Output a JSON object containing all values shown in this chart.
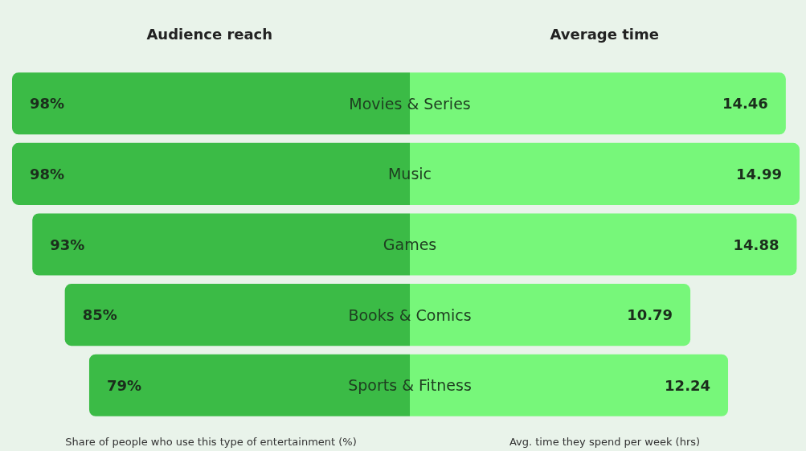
{
  "chart_data": [
    {
      "type": "bar",
      "orientation": "horizontal",
      "title": "Audience reach",
      "xlabel": "Share of people who use this type of entertainment (%)",
      "categories": [
        "Movies & Series",
        "Music",
        "Games",
        "Books & Comics",
        "Sports & Fitness"
      ],
      "values": [
        98,
        98,
        93,
        85,
        79
      ],
      "value_labels": [
        "98%",
        "98%",
        "93%",
        "85%",
        "79%"
      ],
      "color": "#3bbb46",
      "xlim": [
        98,
        0
      ],
      "tick_labels": "y"
    },
    {
      "type": "bar",
      "orientation": "horizontal",
      "title": "Average time",
      "xlabel": "Avg. time they spend per week (hrs)",
      "categories": [
        null,
        null,
        null,
        null,
        null
      ],
      "values": [
        14.46,
        14.99,
        14.88,
        10.79,
        12.24
      ],
      "data_labels": true,
      "color": "#77f77a",
      "xlim": [
        0,
        14.99
      ],
      "tick_labels": false
    }
  ]
}
